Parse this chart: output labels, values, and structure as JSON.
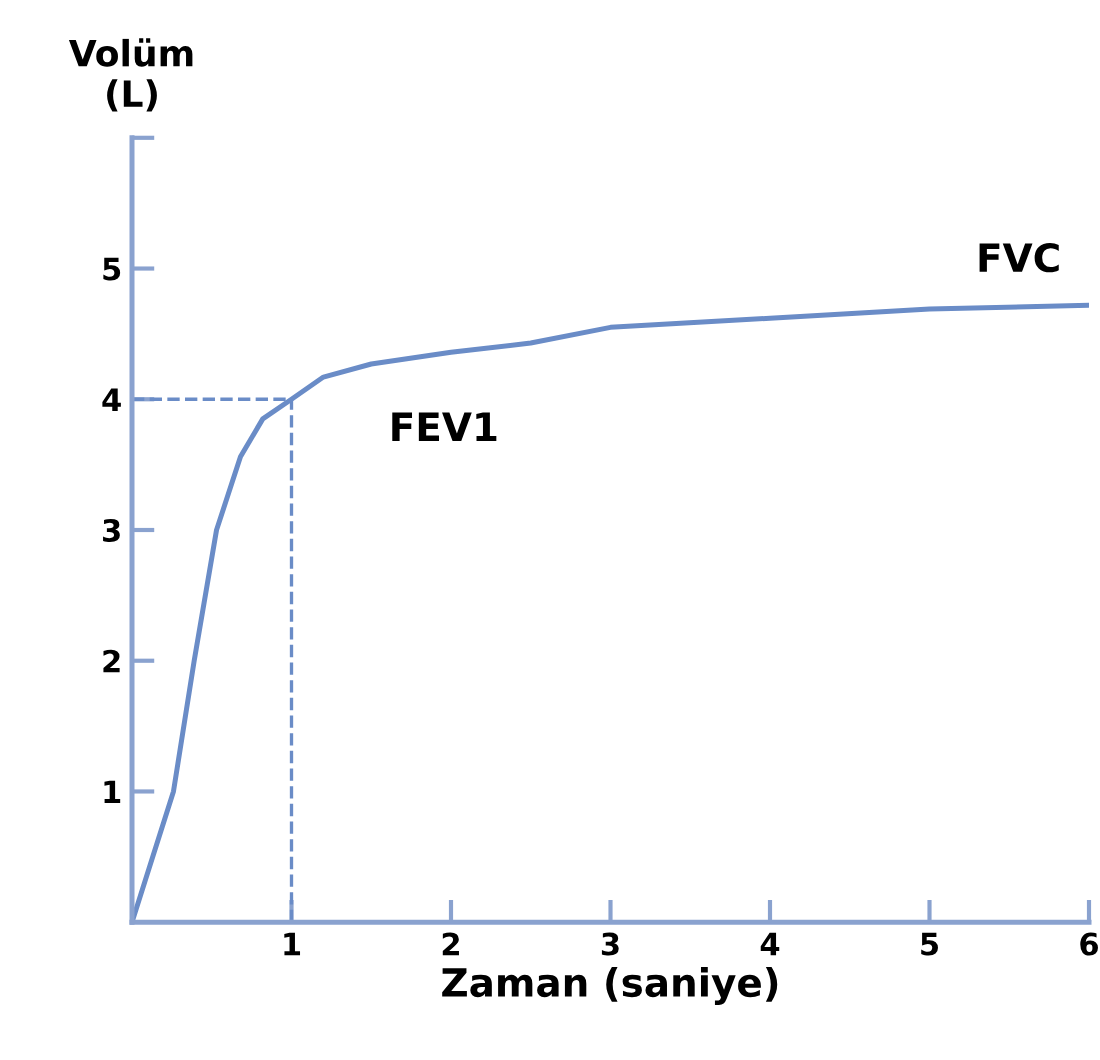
{
  "chart_data": {
    "type": "line",
    "xlabel": "Zaman (saniye)",
    "ylabel": "Volüm\n(L)",
    "x": [
      0,
      0.13,
      0.26,
      0.39,
      0.53,
      0.68,
      0.82,
      1.0,
      1.2,
      1.5,
      2.0,
      2.5,
      3.0,
      4.0,
      5.0,
      6.0
    ],
    "series": [
      {
        "color": "#6a8cc7",
        "values": [
          0,
          0.5,
          1.0,
          2.0,
          3.0,
          3.56,
          3.85,
          4.0,
          4.17,
          4.27,
          4.36,
          4.43,
          4.55,
          4.62,
          4.69,
          4.72
        ]
      }
    ],
    "xlim": [
      0,
      6
    ],
    "ylim": [
      0,
      6
    ],
    "xticks": [
      1,
      2,
      3,
      4,
      5,
      6
    ],
    "yticks": [
      1,
      2,
      3,
      4,
      5,
      {
        "value": 6,
        "label": null
      }
    ],
    "ref_lines": [
      {
        "axis": "x",
        "value": 1,
        "line_style": "dashed",
        "color": "#6a8cc7"
      },
      {
        "axis": "y",
        "value": 4,
        "line_style": "dashed",
        "color": "#6a8cc7"
      }
    ],
    "annotations": [
      {
        "text": "FEV1",
        "x": 1,
        "y": 4
      },
      {
        "text": "FVC",
        "x": 6,
        "y": 4.72
      }
    ],
    "grid": false,
    "legend": false,
    "marker": "none",
    "line_style": "solid"
  }
}
